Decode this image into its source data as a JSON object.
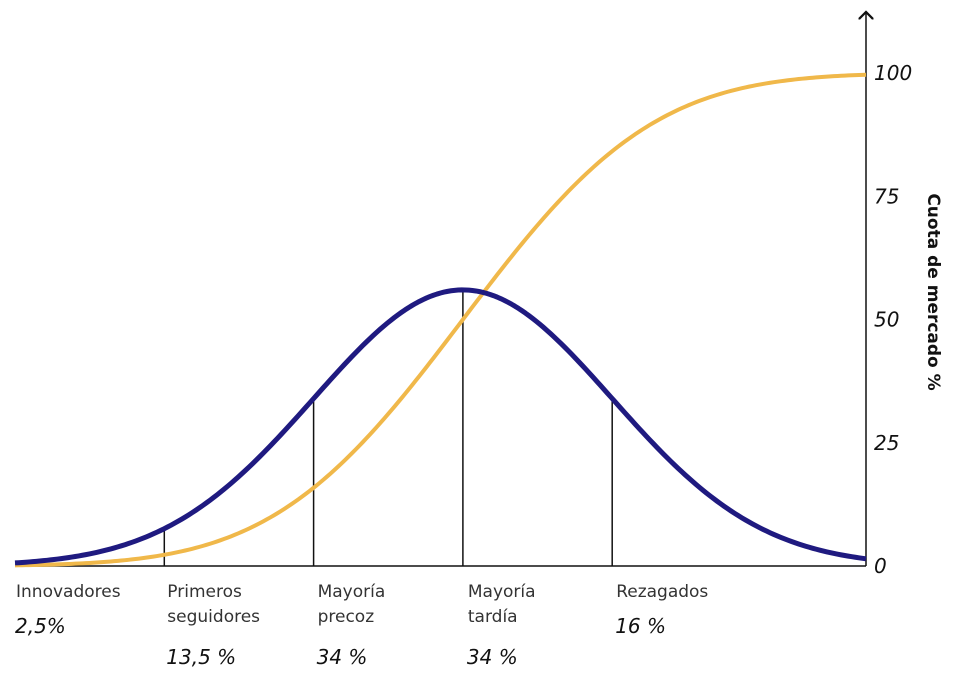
{
  "chart_data": {
    "type": "line",
    "title": "",
    "xlabel": "",
    "ylabel": "Cuota de mercado %",
    "ylim": [
      0,
      110
    ],
    "yticks": [
      0,
      25,
      50,
      75,
      100
    ],
    "grid": false,
    "x_range": [
      -3,
      2.7
    ],
    "bell_peak_at_y": 56,
    "series": [
      {
        "kind": "adoption-rate",
        "color": "#1f1a80"
      },
      {
        "kind": "cumulative-share",
        "color": "#f0b84a"
      }
    ],
    "segment_boundaries_sd": [
      -2,
      -1,
      0,
      1
    ],
    "segments": [
      {
        "name": [
          "Innovadores"
        ],
        "share": "2,5%"
      },
      {
        "name": [
          "Primeros",
          "seguidores"
        ],
        "share": "13,5 %"
      },
      {
        "name": [
          "Mayoría",
          "precoz"
        ],
        "share": "34 %"
      },
      {
        "name": [
          "Mayoría",
          "tardía"
        ],
        "share": "34 %"
      },
      {
        "name": [
          "Rezagados"
        ],
        "share": "16 %"
      }
    ]
  }
}
